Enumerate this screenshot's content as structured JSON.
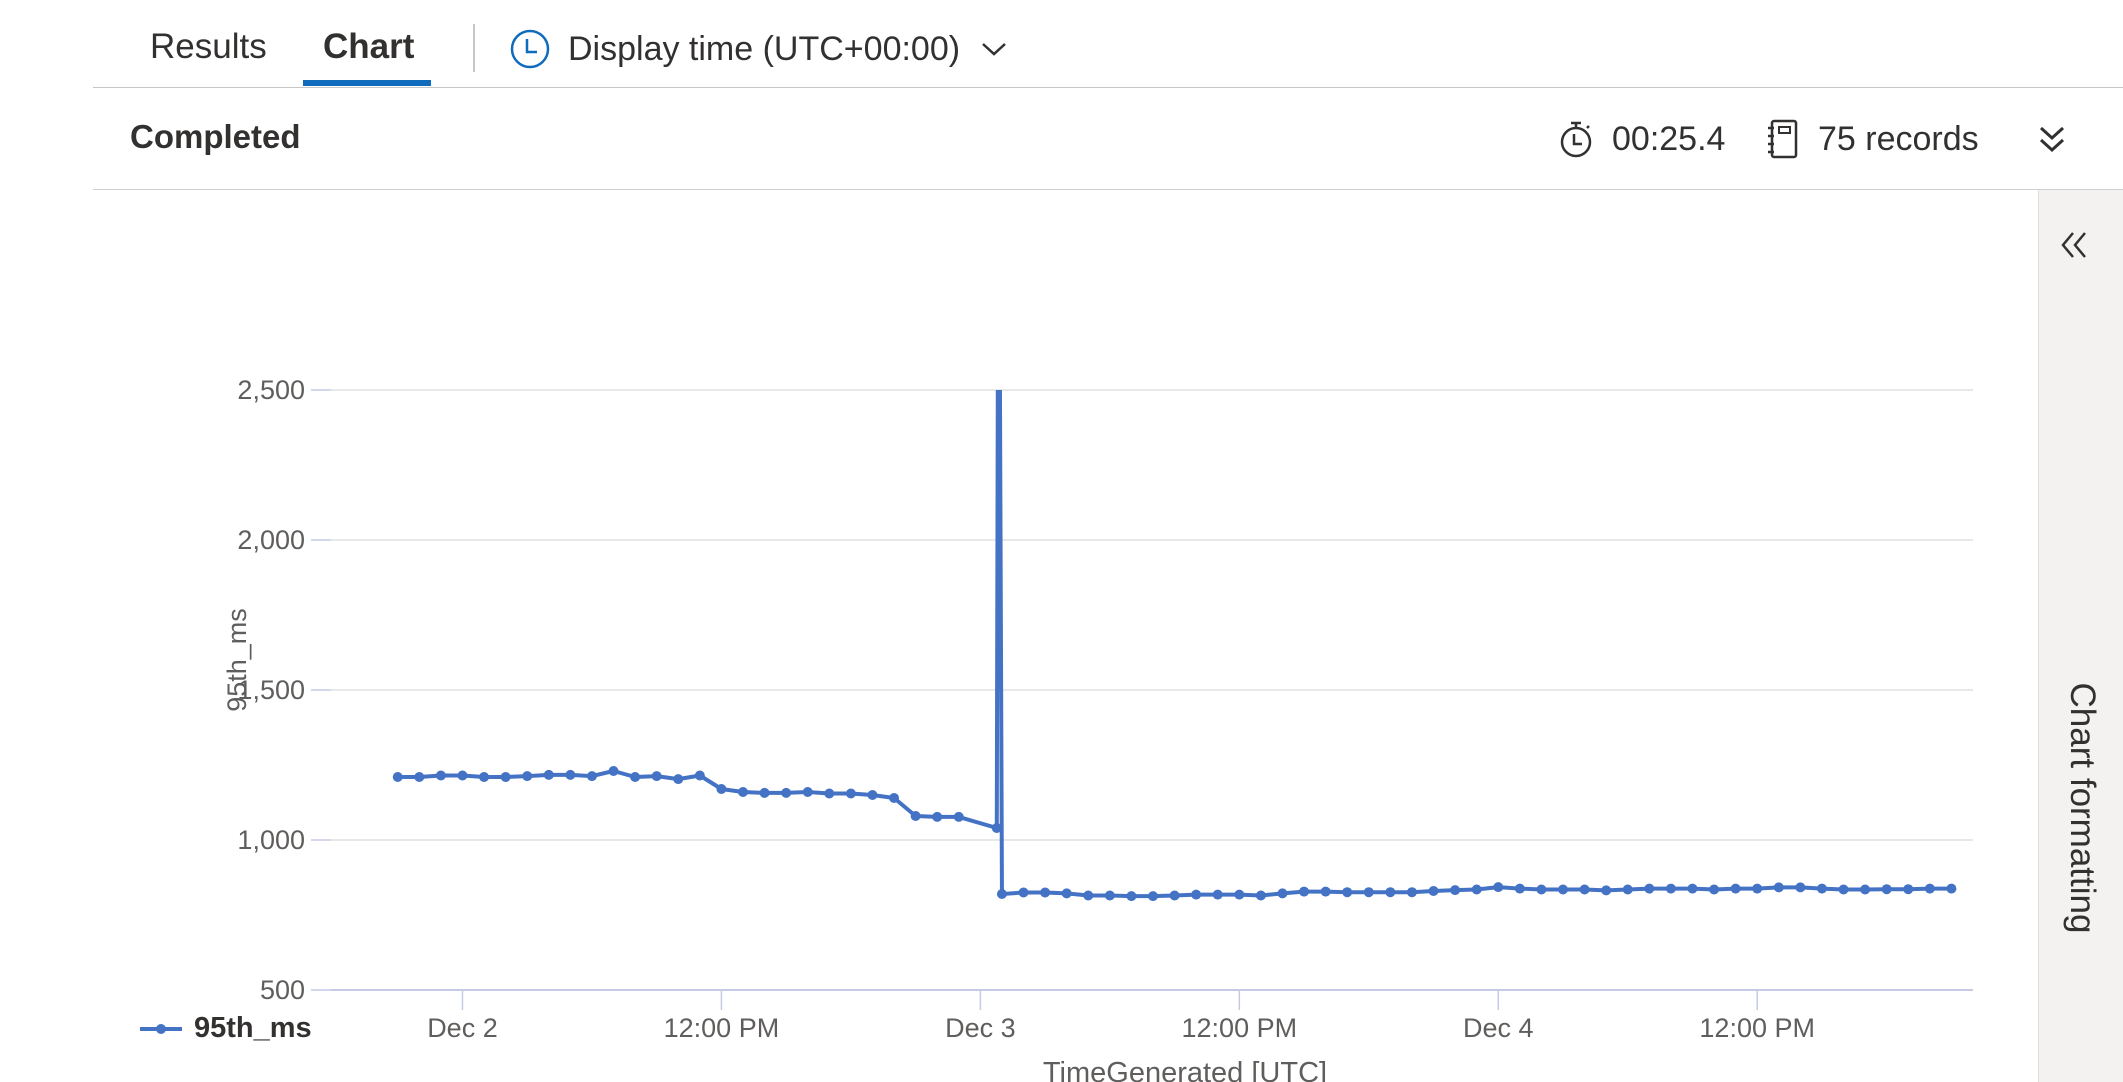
{
  "tabs": [
    {
      "label": "Results"
    },
    {
      "label": "Chart"
    }
  ],
  "display_time": {
    "label": "Display time (UTC+00:00)",
    "icon": "clock-icon"
  },
  "status": {
    "state": "Completed",
    "duration": "00:25.4",
    "records": "75 records",
    "duration_icon": "stopwatch-icon",
    "records_icon": "notebook-icon"
  },
  "side_panel": {
    "label": "Chart formatting"
  },
  "legend": {
    "series_name": "95th_ms"
  },
  "colors": {
    "accent": "#0f6cbd",
    "series": "#4472c4"
  },
  "chart_data": {
    "type": "line",
    "xlabel": "TimeGenerated [UTC]",
    "ylabel": "95th_ms",
    "ylim": [
      500,
      2500
    ],
    "yticks": [
      500,
      1000,
      1500,
      2000,
      2500
    ],
    "ytick_labels": [
      "500",
      "1,000",
      "1,500",
      "2,000",
      "2,500"
    ],
    "xlim": [
      "2023-12-01T18:00",
      "2023-12-04T22:00"
    ],
    "xticks": [
      "2023-12-02T00:00",
      "2023-12-02T12:00",
      "2023-12-03T00:00",
      "2023-12-03T12:00",
      "2023-12-04T00:00",
      "2023-12-04T12:00"
    ],
    "xtick_labels": [
      "Dec 2",
      "12:00 PM",
      "Dec 3",
      "12:00 PM",
      "Dec 4",
      "12:00 PM"
    ],
    "grid": true,
    "legend_position": "bottom-left",
    "series": [
      {
        "name": "95th_ms",
        "x": [
          "2023-12-01T21:00",
          "2023-12-01T22:00",
          "2023-12-01T23:00",
          "2023-12-02T00:00",
          "2023-12-02T01:00",
          "2023-12-02T02:00",
          "2023-12-02T03:00",
          "2023-12-02T04:00",
          "2023-12-02T05:00",
          "2023-12-02T06:00",
          "2023-12-02T07:00",
          "2023-12-02T08:00",
          "2023-12-02T09:00",
          "2023-12-02T10:00",
          "2023-12-02T11:00",
          "2023-12-02T12:00",
          "2023-12-02T13:00",
          "2023-12-02T14:00",
          "2023-12-02T15:00",
          "2023-12-02T16:00",
          "2023-12-02T17:00",
          "2023-12-02T18:00",
          "2023-12-02T19:00",
          "2023-12-02T20:00",
          "2023-12-02T21:00",
          "2023-12-02T22:00",
          "2023-12-02T23:00",
          "2023-12-03T01:00",
          "2023-12-03T02:00",
          "2023-12-03T03:00",
          "2023-12-03T04:00",
          "2023-12-03T05:00",
          "2023-12-03T06:00",
          "2023-12-03T07:00",
          "2023-12-03T08:00",
          "2023-12-03T09:00",
          "2023-12-03T10:00",
          "2023-12-03T11:00",
          "2023-12-03T12:00",
          "2023-12-03T13:00",
          "2023-12-03T14:00",
          "2023-12-03T15:00",
          "2023-12-03T16:00",
          "2023-12-03T17:00",
          "2023-12-03T18:00",
          "2023-12-03T19:00",
          "2023-12-03T20:00",
          "2023-12-03T21:00",
          "2023-12-03T22:00",
          "2023-12-03T23:00",
          "2023-12-04T00:00",
          "2023-12-04T01:00",
          "2023-12-04T02:00",
          "2023-12-04T03:00",
          "2023-12-04T04:00",
          "2023-12-04T05:00",
          "2023-12-04T06:00",
          "2023-12-04T07:00",
          "2023-12-04T08:00",
          "2023-12-04T09:00",
          "2023-12-04T10:00",
          "2023-12-04T11:00",
          "2023-12-04T12:00",
          "2023-12-04T13:00",
          "2023-12-04T14:00",
          "2023-12-04T15:00",
          "2023-12-04T16:00",
          "2023-12-04T17:00",
          "2023-12-04T18:00",
          "2023-12-04T19:00",
          "2023-12-04T20:00",
          "2023-12-04T21:00"
        ],
        "y": [
          1210,
          1210,
          1215,
          1215,
          1210,
          1210,
          1213,
          1217,
          1217,
          1213,
          1230,
          1210,
          1213,
          1203,
          1215,
          1170,
          1160,
          1157,
          1157,
          1160,
          1155,
          1155,
          1150,
          1140,
          1080,
          1077,
          1077,
          820,
          825,
          825,
          822,
          815,
          815,
          813,
          813,
          815,
          818,
          818,
          818,
          815,
          822,
          828,
          828,
          826,
          826,
          826,
          826,
          830,
          833,
          835,
          843,
          838,
          835,
          835,
          835,
          832,
          835,
          838,
          838,
          838,
          835,
          838,
          838,
          842,
          842,
          838,
          835,
          835,
          836,
          836,
          838,
          838
        ],
        "spike": {
          "top": 2500,
          "after_x": "2023-12-02T23:00",
          "before_x": "2023-12-03T01:00",
          "last_value_before": 1040
        }
      }
    ]
  }
}
